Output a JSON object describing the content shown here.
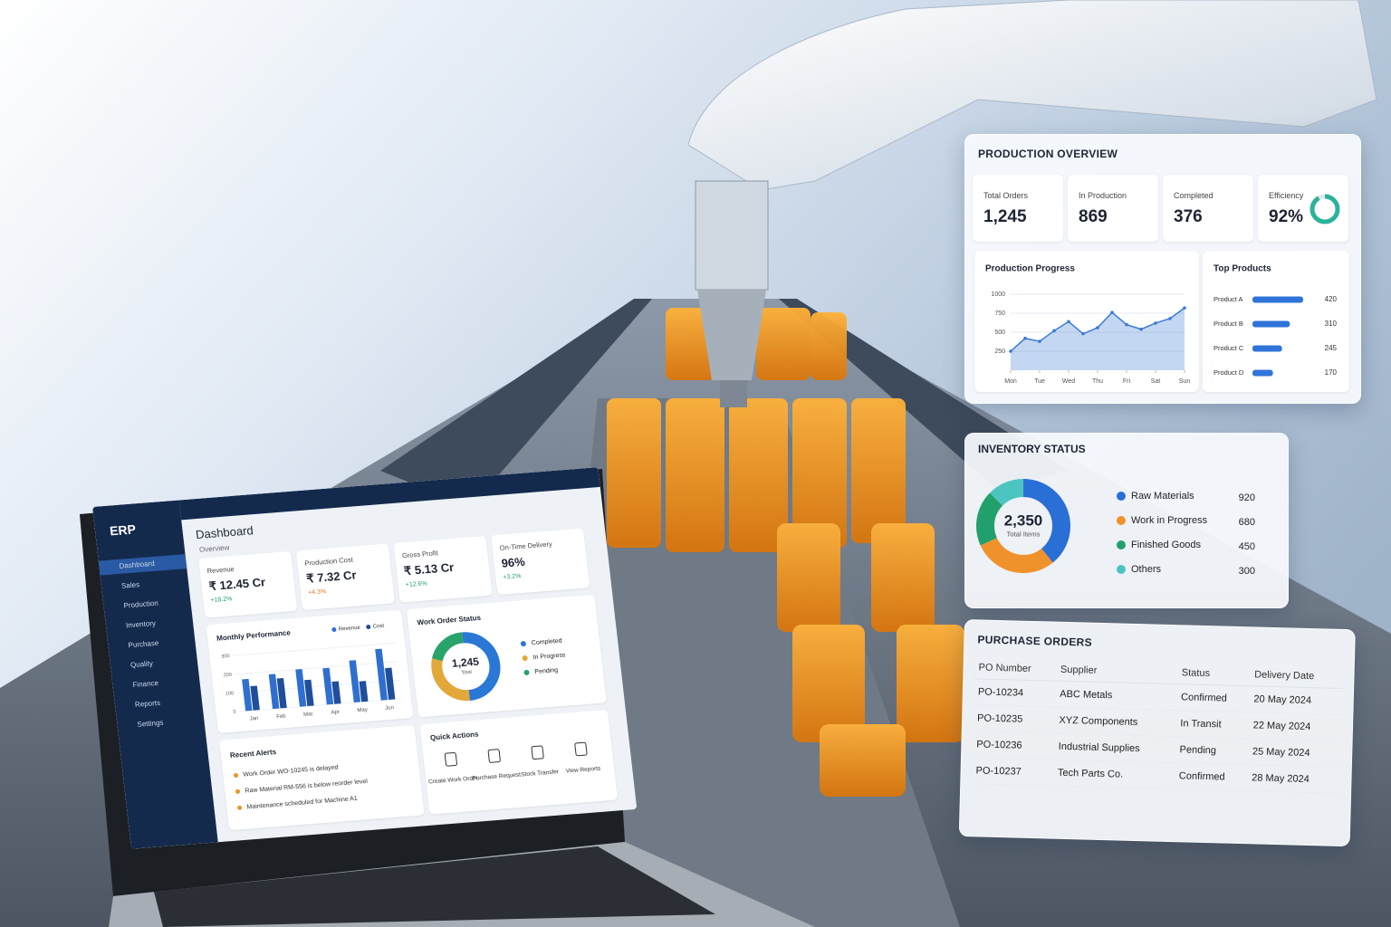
{
  "production_overview": {
    "title": "PRODUCTION OVERVIEW",
    "kpis": [
      {
        "label": "Total Orders",
        "value": "1,245"
      },
      {
        "label": "In Production",
        "value": "869"
      },
      {
        "label": "Completed",
        "value": "376"
      },
      {
        "label": "Efficiency",
        "value": 92,
        "value_label": "92%"
      }
    ],
    "progress_chart": {
      "type": "line",
      "title": "Production Progress",
      "x": [
        0,
        0.5,
        1,
        1.5,
        2,
        2.5,
        3,
        3.5,
        4,
        4.5,
        5,
        5.5,
        6
      ],
      "values": [
        250,
        420,
        380,
        520,
        640,
        480,
        560,
        760,
        600,
        540,
        620,
        680,
        820
      ],
      "xlim": [
        0,
        6
      ],
      "xticks": [
        {
          "value": 0,
          "label": "Mon"
        },
        {
          "value": 1,
          "label": "Tue"
        },
        {
          "value": 2,
          "label": "Wed"
        },
        {
          "value": 3,
          "label": "Thu"
        },
        {
          "value": 4,
          "label": "Fri"
        },
        {
          "value": 5,
          "label": "Sat"
        },
        {
          "value": 6,
          "label": "Sun"
        }
      ],
      "ylim": [
        0,
        1000
      ],
      "yticks": [
        250,
        500,
        750,
        1000
      ],
      "color": "#3a7bd5"
    },
    "top_products": {
      "type": "bar",
      "title": "Top Products",
      "categories": [
        "Product A",
        "Product B",
        "Product C",
        "Product D"
      ],
      "values": [
        420,
        310,
        245,
        170
      ],
      "xlim": [
        0,
        450
      ],
      "color": "#2f74d8"
    }
  },
  "inventory_status": {
    "type": "pie",
    "title": "INVENTORY STATUS",
    "total": "2,350",
    "total_label": "Total Items",
    "categories": [
      "Raw Materials",
      "Work in Progress",
      "Finished Goods",
      "Others"
    ],
    "values": [
      920,
      680,
      450,
      300
    ],
    "colors": [
      "#2a6fd6",
      "#f0922b",
      "#22a06b",
      "#4cc4c0"
    ]
  },
  "purchase_orders": {
    "title": "PURCHASE ORDERS",
    "columns": [
      "PO Number",
      "Supplier",
      "Status",
      "Delivery Date"
    ],
    "rows": [
      [
        "PO-10234",
        "ABC Metals",
        "Confirmed",
        "20 May 2024"
      ],
      [
        "PO-10235",
        "XYZ Components",
        "In Transit",
        "22 May 2024"
      ],
      [
        "PO-10236",
        "Industrial Supplies",
        "Pending",
        "25 May 2024"
      ],
      [
        "PO-10237",
        "Tech Parts Co.",
        "Confirmed",
        "28 May 2024"
      ]
    ]
  },
  "erp": {
    "logo": "ERP",
    "nav": [
      "Dashboard",
      "Sales",
      "Production",
      "Inventory",
      "Purchase",
      "Quality",
      "Finance",
      "Reports",
      "Settings"
    ],
    "page_title": "Dashboard",
    "section": "Overview",
    "kpis": [
      {
        "label": "Revenue",
        "value": "₹ 12.45 Cr",
        "change": "+18.2%"
      },
      {
        "label": "Production Cost",
        "value": "₹ 7.32 Cr",
        "change": "+4.3%"
      },
      {
        "label": "Gross Profit",
        "value": "₹ 5.13 Cr",
        "change": "+12.6%"
      },
      {
        "label": "On-Time Delivery",
        "value": "96%",
        "change": "+3.2%"
      }
    ],
    "monthly_performance": {
      "type": "bar",
      "title": "Monthly Performance",
      "categories": [
        "Jan",
        "Feb",
        "Mar",
        "Apr",
        "May",
        "Jun"
      ],
      "series": [
        {
          "name": "Revenue",
          "color": "#2f6fd0",
          "values": [
            170,
            185,
            200,
            195,
            225,
            275
          ]
        },
        {
          "name": "Cost",
          "color": "#1f4e9a",
          "values": [
            130,
            160,
            140,
            120,
            110,
            170
          ]
        }
      ],
      "ylim": [
        0,
        300
      ],
      "yticks": [
        0,
        100,
        200,
        300
      ]
    },
    "work_order_status": {
      "type": "pie",
      "title": "Work Order Status",
      "total": "1,245",
      "total_label": "Total",
      "categories": [
        "Completed",
        "In Progress",
        "Pending"
      ],
      "values": [
        620,
        375,
        250
      ],
      "colors": [
        "#2a78d6",
        "#e2a83a",
        "#29a36a"
      ]
    },
    "recent_alerts": {
      "title": "Recent Alerts",
      "items": [
        "Work Order WO-10245 is delayed",
        "Raw Material RM-556 is below reorder level",
        "Maintenance scheduled for Machine A1"
      ]
    },
    "quick_actions": {
      "title": "Quick Actions",
      "items": [
        "Create Work Order",
        "Purchase Request",
        "Stock Transfer",
        "View Reports"
      ]
    }
  }
}
